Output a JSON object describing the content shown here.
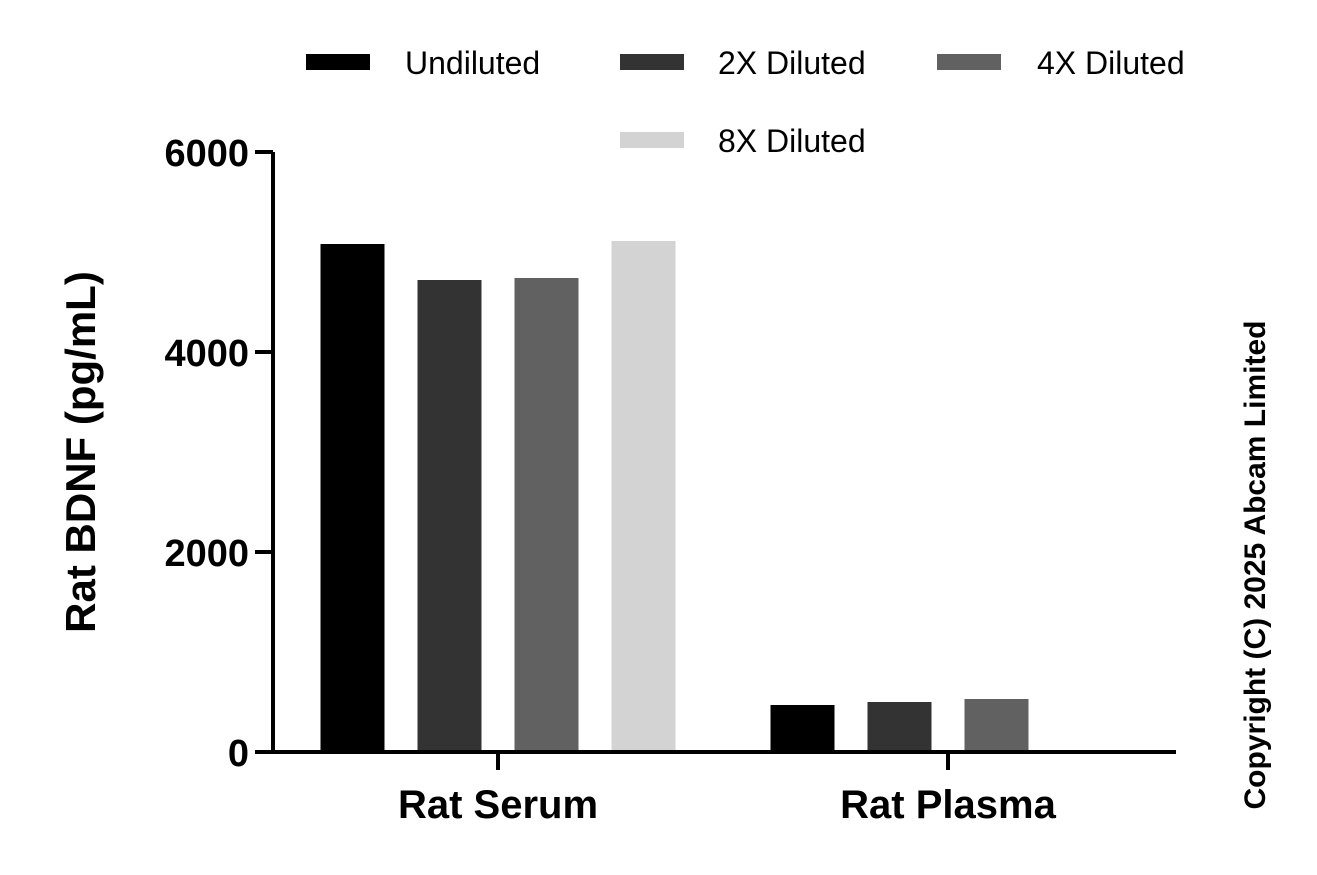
{
  "chart_data": {
    "type": "bar",
    "categories": [
      "Rat Serum",
      "Rat Plasma"
    ],
    "series": [
      {
        "name": "Undiluted",
        "color": "#000000",
        "values": [
          5080,
          470
        ]
      },
      {
        "name": "2X Diluted",
        "color": "#333333",
        "values": [
          4720,
          500
        ]
      },
      {
        "name": "4X Diluted",
        "color": "#616161",
        "values": [
          4740,
          530
        ]
      },
      {
        "name": "8X Diluted",
        "color": "#d3d3d3",
        "values": [
          5110,
          null
        ]
      }
    ],
    "ylabel": "Rat BDNF (pg/mL)",
    "ylim": [
      0,
      6000
    ],
    "yticks": [
      0,
      2000,
      4000,
      6000
    ],
    "grid": false,
    "legend_position": "top"
  },
  "copyright": "Copyright (C) 2025 Abcam Limited"
}
